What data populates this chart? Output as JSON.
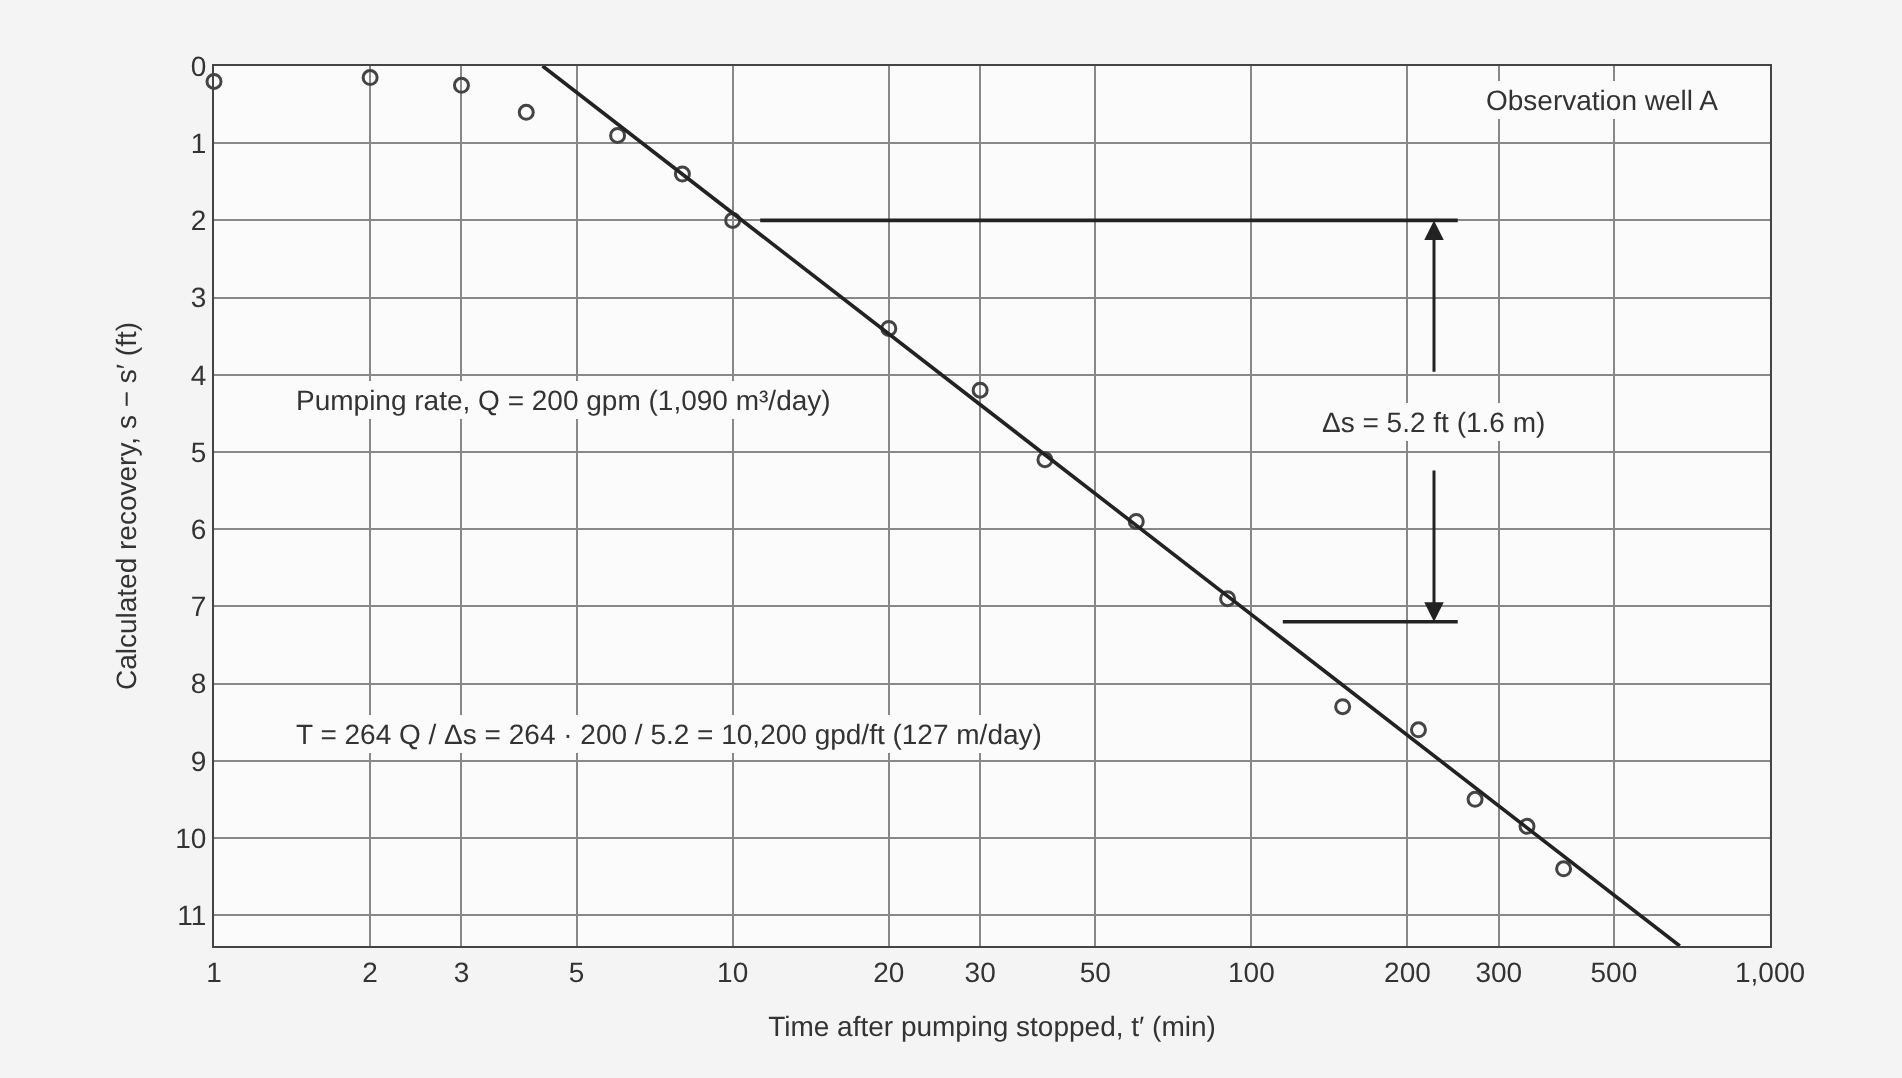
{
  "chart_data": {
    "type": "scatter",
    "xlabel": "Time after pumping stopped, t′ (min)",
    "ylabel": "Calculated recovery, s − s′ (ft)",
    "log": "x",
    "grid": true,
    "marker": "circle",
    "xlim": [
      1,
      1000
    ],
    "xticks": [
      1,
      2,
      3,
      5,
      10,
      20,
      30,
      50,
      100,
      200,
      300,
      500,
      {
        "value": 1000,
        "label": "1,000"
      }
    ],
    "ylim": [
      11.4,
      0
    ],
    "yticks": [
      0,
      1,
      2,
      3,
      4,
      5,
      6,
      7,
      8,
      9,
      10,
      11
    ],
    "series": [
      {
        "color": "#444444",
        "x": [
          1,
          2,
          3,
          4,
          6,
          8,
          10,
          20,
          30,
          40,
          60,
          90,
          150,
          210,
          270,
          340,
          400
        ],
        "values": [
          0.2,
          0.15,
          0.25,
          0.6,
          0.9,
          1.4,
          2.0,
          3.4,
          4.2,
          5.1,
          5.9,
          6.9,
          8.3,
          8.6,
          9.5,
          9.85,
          10.4
        ]
      },
      {
        "type": "line",
        "color": "#222222",
        "line_style": "solid",
        "marker": "none",
        "x": [
          4.3,
          670
        ],
        "values": [
          0,
          11.4
        ]
      },
      {
        "type": "line",
        "color": "#222222",
        "line_style": "solid",
        "marker": "none",
        "x": [
          11.3,
          250
        ],
        "values": [
          2.0,
          2.0
        ]
      },
      {
        "type": "line",
        "color": "#222222",
        "line_style": "solid",
        "marker": "none",
        "x": [
          115,
          250
        ],
        "values": [
          7.2,
          7.2
        ]
      }
    ],
    "annotations": [
      "Observation well A",
      {
        "text": "Δs = 5.2 ft (1.6 m)",
        "x": 225,
        "y": 2.0
      },
      "Pumping rate, Q = 200 gpm (1,090 m³/day)",
      "T = 264 Q / Δs = 264 · 200 / 5.2 = 10,200 gpd/ft (127 m/day)"
    ]
  }
}
